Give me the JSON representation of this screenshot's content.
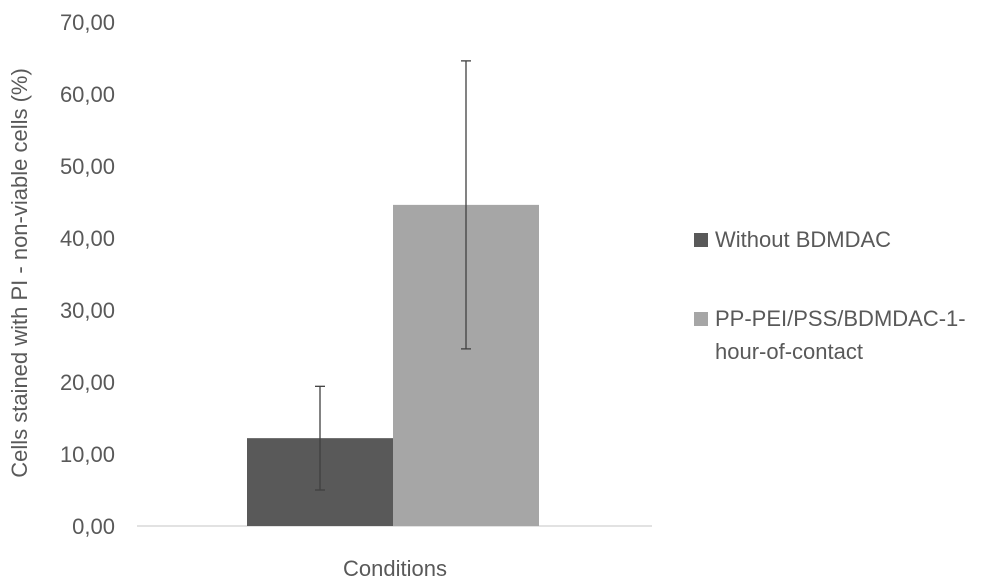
{
  "chart_data": {
    "type": "bar",
    "title": "",
    "xlabel": "Conditions",
    "ylabel": "Cells stained with PI - non-viable cells (%)",
    "ylim": [
      0,
      70
    ],
    "yticks": [
      "0,00",
      "10,00",
      "20,00",
      "30,00",
      "40,00",
      "50,00",
      "60,00",
      "70,00"
    ],
    "grid": false,
    "legend_position": "right",
    "categories": [
      "Conditions"
    ],
    "series": [
      {
        "name": "Without BDMDAC",
        "legend_lines": [
          "Without BDMDAC"
        ],
        "color": "#595959",
        "values": [
          12.2
        ],
        "error": [
          7.2
        ]
      },
      {
        "name": "PP-PEI/PSS/BDMDAC-1-hour-of-contact",
        "legend_lines": [
          "PP-PEI/PSS/BDMDAC-1-",
          "hour-of-contact"
        ],
        "color": "#a6a6a6",
        "values": [
          44.6
        ],
        "error": [
          20.0
        ]
      }
    ]
  }
}
